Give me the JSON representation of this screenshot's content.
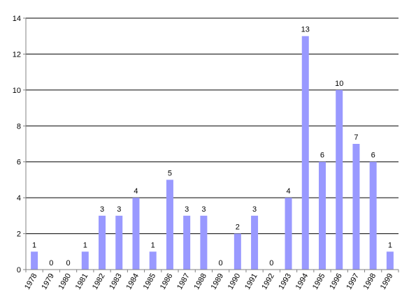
{
  "chart_data": {
    "type": "bar",
    "title": "",
    "xlabel": "",
    "ylabel": "",
    "ylim": [
      0,
      14
    ],
    "yticks": [
      0,
      2,
      4,
      6,
      8,
      10,
      12,
      14
    ],
    "grid": true,
    "legend": "none",
    "categories": [
      "1978",
      "1979",
      "1980",
      "1981",
      "1982",
      "1983",
      "1984",
      "1985",
      "1986",
      "1987",
      "1988",
      "1989",
      "1990",
      "1991",
      "1992",
      "1993",
      "1994",
      "1995",
      "1996",
      "1997",
      "1998",
      "1999"
    ],
    "values": [
      1,
      0,
      0,
      1,
      3,
      3,
      4,
      1,
      5,
      3,
      3,
      0,
      2,
      3,
      0,
      4,
      13,
      6,
      10,
      7,
      6,
      1
    ],
    "colors": {
      "bar": "#9999ff",
      "grid": "#000000",
      "axis": "#808080"
    }
  }
}
